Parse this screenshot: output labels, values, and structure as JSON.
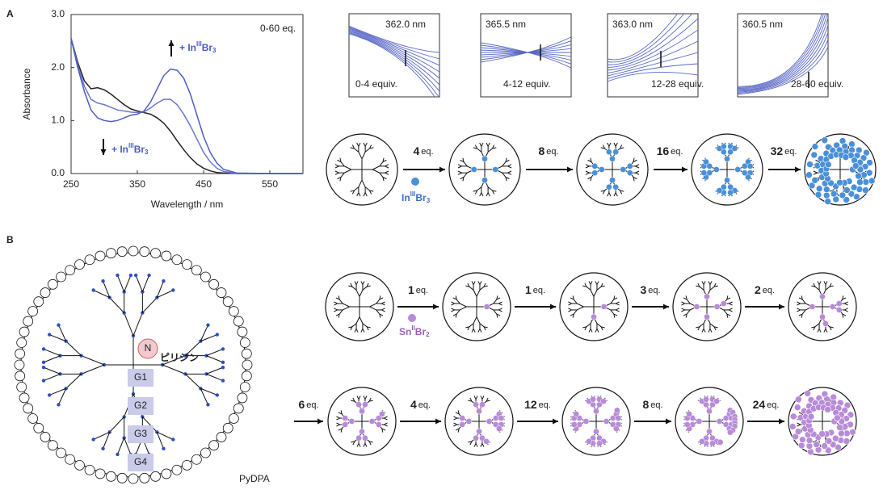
{
  "panel_a": {
    "label": "A",
    "spectrum": {
      "type": "line",
      "annotation": "0-60 eq.",
      "xlabel": "Wavelength / nm",
      "ylabel": "Absorbance",
      "increase": {
        "prefix": "+ In",
        "oxidation": "III",
        "halide": "Br",
        "count": "3"
      },
      "decrease": {
        "prefix": "+ In",
        "oxidation": "III",
        "halide": "Br",
        "count": "3"
      },
      "x": [
        250,
        260,
        270,
        280,
        290,
        300,
        310,
        320,
        330,
        340,
        350,
        360,
        370,
        380,
        390,
        400,
        410,
        420,
        430,
        440,
        450,
        460,
        470,
        480,
        500,
        550,
        600
      ],
      "series": [
        {
          "color": "#222222",
          "values": [
            2.55,
            2.1,
            1.75,
            1.6,
            1.62,
            1.58,
            1.5,
            1.4,
            1.3,
            1.22,
            1.18,
            1.15,
            1.12,
            1.05,
            0.95,
            0.8,
            0.62,
            0.45,
            0.3,
            0.18,
            0.1,
            0.05,
            0.02,
            0.01,
            0,
            0,
            0
          ]
        },
        {
          "color": "#6a76cc",
          "values": [
            2.55,
            2.05,
            1.65,
            1.4,
            1.33,
            1.3,
            1.25,
            1.2,
            1.18,
            1.16,
            1.15,
            1.16,
            1.24,
            1.33,
            1.4,
            1.4,
            1.3,
            1.12,
            0.9,
            0.65,
            0.4,
            0.22,
            0.1,
            0.04,
            0,
            0,
            0
          ]
        },
        {
          "color": "#4d5cc4",
          "values": [
            2.55,
            2.0,
            1.55,
            1.2,
            1.05,
            1.0,
            0.98,
            1.0,
            1.05,
            1.1,
            1.12,
            1.18,
            1.35,
            1.6,
            1.85,
            1.97,
            1.95,
            1.8,
            1.5,
            1.1,
            0.7,
            0.4,
            0.2,
            0.08,
            0.01,
            0,
            0
          ]
        }
      ],
      "xlim": [
        250,
        600
      ],
      "ylim": [
        0,
        3
      ],
      "xticks": [
        250,
        350,
        450,
        550
      ],
      "yticks": [
        {
          "value": 0,
          "label": "0.0"
        },
        {
          "value": 1,
          "label": "1.0"
        },
        {
          "value": 2,
          "label": "2.0"
        },
        {
          "value": 3,
          "label": "3.0"
        }
      ]
    },
    "insets": [
      {
        "wavelength": "362.0 nm",
        "range": "0-4 equiv."
      },
      {
        "wavelength": "365.5 nm",
        "range": "4-12 equiv."
      },
      {
        "wavelength": "363.0 nm",
        "range": "12-28 equiv."
      },
      {
        "wavelength": "360.5 nm",
        "range": "28-60 equiv."
      }
    ],
    "titration": {
      "reagent": {
        "element": "In",
        "oxidation": "III",
        "halide": "Br",
        "count": "3"
      },
      "steps": [
        {
          "amount": "4",
          "unit": "eq."
        },
        {
          "amount": "8",
          "unit": "eq."
        },
        {
          "amount": "16",
          "unit": "eq."
        },
        {
          "amount": "32",
          "unit": "eq."
        }
      ]
    }
  },
  "panel_b": {
    "label": "B",
    "structure": {
      "core_atom": "N",
      "core_name": "ピリジン",
      "generations": [
        "G1",
        "G2",
        "G3",
        "G4"
      ],
      "name": "PyDPA"
    },
    "titration": {
      "reagent": {
        "element": "Sn",
        "oxidation": "II",
        "halide": "Br",
        "count": "2"
      },
      "steps": [
        {
          "amount": "1",
          "unit": "eq."
        },
        {
          "amount": "1",
          "unit": "eq."
        },
        {
          "amount": "3",
          "unit": "eq."
        },
        {
          "amount": "2",
          "unit": "eq."
        },
        {
          "amount": "6",
          "unit": "eq."
        },
        {
          "amount": "4",
          "unit": "eq."
        },
        {
          "amount": "12",
          "unit": "eq."
        },
        {
          "amount": "8",
          "unit": "eq."
        },
        {
          "amount": "24",
          "unit": "eq."
        }
      ]
    }
  }
}
